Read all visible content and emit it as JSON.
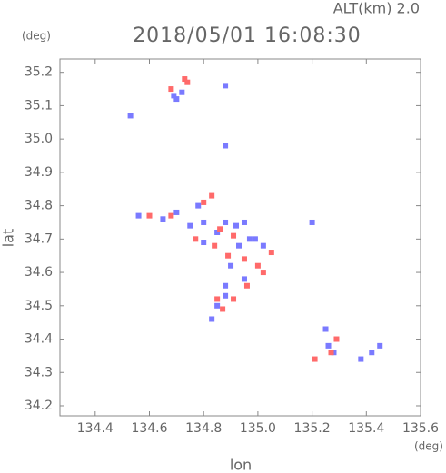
{
  "chart_data": {
    "type": "scatter",
    "title": "2018/05/01 16:08:30",
    "subtitle": "ALT(km) 2.0",
    "x_label": "lon",
    "y_label": "lat",
    "x_unit": "(deg)",
    "y_unit": "(deg)",
    "xlim": [
      134.27,
      135.6
    ],
    "ylim": [
      34.17,
      35.24
    ],
    "xticks": [
      134.4,
      134.6,
      134.8,
      {
        "value": 135.0,
        "label": "135.0"
      },
      135.2,
      135.4,
      135.6
    ],
    "yticks": [
      34.2,
      34.3,
      34.4,
      34.5,
      34.6,
      34.7,
      34.8,
      34.9,
      {
        "value": 35.0,
        "label": "35.0"
      },
      35.1,
      35.2
    ],
    "series": [
      {
        "color": "#7a7aff",
        "x": [
          134.53,
          134.69,
          134.7,
          134.72,
          134.88,
          134.88,
          134.56,
          134.65,
          134.7,
          134.75,
          134.8,
          134.85,
          134.88,
          134.92,
          134.95,
          134.93,
          134.97,
          134.9,
          134.95,
          134.88,
          134.85,
          134.88,
          134.83,
          134.99,
          135.02,
          135.2,
          135.25,
          135.26,
          135.28,
          135.38,
          135.42,
          135.45,
          134.8,
          134.78
        ],
        "values": [
          35.07,
          35.13,
          35.12,
          35.14,
          35.16,
          34.98,
          34.77,
          34.76,
          34.78,
          34.74,
          34.75,
          34.72,
          34.75,
          34.74,
          34.75,
          34.68,
          34.7,
          34.62,
          34.58,
          34.56,
          34.5,
          34.53,
          34.46,
          34.7,
          34.68,
          34.75,
          34.43,
          34.38,
          34.36,
          34.34,
          34.36,
          34.38,
          34.69,
          34.8
        ]
      },
      {
        "color": "#ff6a6a",
        "x": [
          134.73,
          134.68,
          134.74,
          134.6,
          134.68,
          134.8,
          134.83,
          134.77,
          134.84,
          134.86,
          134.91,
          134.95,
          135.0,
          135.02,
          134.96,
          134.87,
          134.85,
          134.91,
          135.21,
          135.29,
          135.27,
          134.89,
          135.05
        ],
        "values": [
          35.18,
          35.15,
          35.17,
          34.77,
          34.77,
          34.81,
          34.83,
          34.7,
          34.68,
          34.73,
          34.71,
          34.64,
          34.62,
          34.6,
          34.56,
          34.49,
          34.52,
          34.52,
          34.34,
          34.4,
          34.36,
          34.65,
          34.66
        ]
      }
    ]
  }
}
